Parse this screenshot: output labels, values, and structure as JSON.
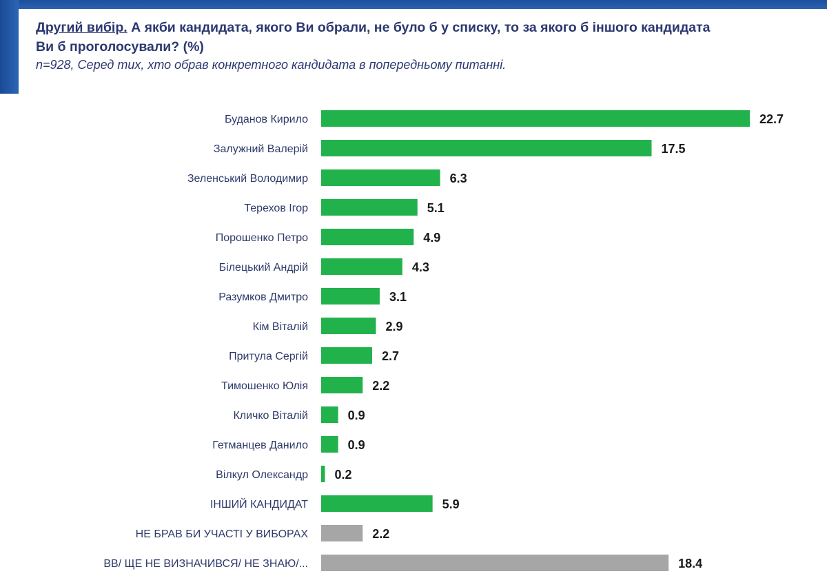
{
  "header": {
    "title_lead": "Другий вибір.",
    "title_rest": " А якби кандидата, якого Ви обрали, не було б у списку, то за якого б іншого кандидата Ви б проголосували? (%)",
    "subtitle": "n=928, Серед тих, хто обрав конкретного кандидата в попередньому питанні."
  },
  "colors": {
    "brand": "#1f55a3",
    "green": "#22b24c",
    "gray": "#a6a6a6"
  },
  "chart_data": {
    "type": "bar",
    "orientation": "horizontal",
    "title": "Другий вибір. А якби кандидата, якого Ви обрали, не було б у списку, то за якого б іншого кандидата Ви б проголосували? (%)",
    "categories": [
      "Буданов Кирило",
      "Залужний Валерій",
      "Зеленський Володимир",
      "Терехов Ігор",
      "Порошенко Петро",
      "Білецький Андрій",
      "Разумков Дмитро",
      "Кім Віталій",
      "Притула Сергій",
      "Тимошенко Юлія",
      "Кличко Віталій",
      "Гетманцев Данило",
      "Вілкул Олександр",
      "ІНШИЙ КАНДИДАТ",
      "НЕ БРАВ БИ УЧАСТІ У ВИБОРАХ",
      "ВВ/ ЩЕ НЕ ВИЗНАЧИВСЯ/ НЕ ЗНАЮ/..."
    ],
    "values": [
      22.7,
      17.5,
      6.3,
      5.1,
      4.9,
      4.3,
      3.1,
      2.9,
      2.7,
      2.2,
      0.9,
      0.9,
      0.2,
      5.9,
      2.2,
      18.4
    ],
    "bar_colors": [
      "green",
      "green",
      "green",
      "green",
      "green",
      "green",
      "green",
      "green",
      "green",
      "green",
      "green",
      "green",
      "green",
      "green",
      "gray",
      "gray"
    ],
    "xlim": [
      0,
      24
    ],
    "grid": false,
    "legend": "none"
  }
}
